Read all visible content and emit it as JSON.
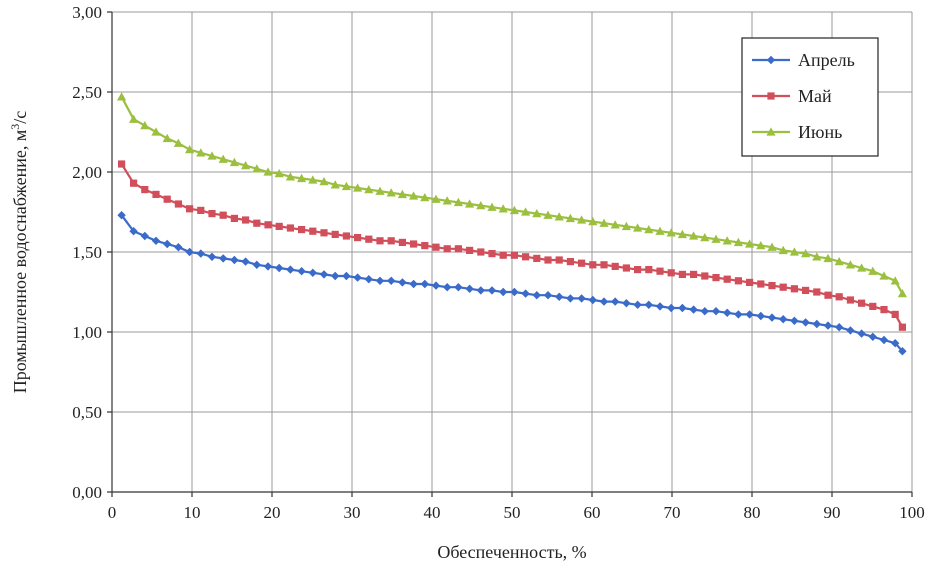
{
  "chart_data": {
    "type": "line",
    "xlabel": "Обеспеченность, %",
    "ylabel_main": "Промышленное водоснабжение, м",
    "ylabel_sup": "3",
    "ylabel_tail": "/с",
    "xlim": [
      0,
      100
    ],
    "ylim": [
      0,
      3
    ],
    "xticks": [
      0,
      10,
      20,
      30,
      40,
      50,
      60,
      70,
      80,
      90,
      100
    ],
    "yticks": [
      "0,00",
      "0,50",
      "1,00",
      "1,50",
      "2,00",
      "2,50",
      "3,00"
    ],
    "ytick_values": [
      0,
      0.5,
      1,
      1.5,
      2,
      2.5,
      3
    ],
    "grid": true,
    "legend_position": "top-right",
    "x": [
      1.2,
      2.7,
      4.1,
      5.5,
      6.9,
      8.3,
      9.7,
      11.1,
      12.5,
      13.9,
      15.3,
      16.7,
      18.1,
      19.5,
      20.9,
      22.3,
      23.7,
      25.1,
      26.5,
      27.9,
      29.3,
      30.7,
      32.1,
      33.5,
      34.9,
      36.3,
      37.7,
      39.1,
      40.5,
      41.9,
      43.3,
      44.7,
      46.1,
      47.5,
      48.9,
      50.3,
      51.7,
      53.1,
      54.5,
      55.9,
      57.3,
      58.7,
      60.1,
      61.5,
      62.9,
      64.3,
      65.7,
      67.1,
      68.5,
      69.9,
      71.3,
      72.7,
      74.1,
      75.5,
      76.9,
      78.3,
      79.7,
      81.1,
      82.5,
      83.9,
      85.3,
      86.7,
      88.1,
      89.5,
      90.9,
      92.3,
      93.7,
      95.1,
      96.5,
      97.9,
      98.8
    ],
    "series": [
      {
        "name": "Апрель",
        "color": "#3a6bc9",
        "marker": "diamond",
        "values": [
          1.73,
          1.63,
          1.6,
          1.57,
          1.55,
          1.53,
          1.5,
          1.49,
          1.47,
          1.46,
          1.45,
          1.44,
          1.42,
          1.41,
          1.4,
          1.39,
          1.38,
          1.37,
          1.36,
          1.35,
          1.35,
          1.34,
          1.33,
          1.32,
          1.32,
          1.31,
          1.3,
          1.3,
          1.29,
          1.28,
          1.28,
          1.27,
          1.26,
          1.26,
          1.25,
          1.25,
          1.24,
          1.23,
          1.23,
          1.22,
          1.21,
          1.21,
          1.2,
          1.19,
          1.19,
          1.18,
          1.17,
          1.17,
          1.16,
          1.15,
          1.15,
          1.14,
          1.13,
          1.13,
          1.12,
          1.11,
          1.11,
          1.1,
          1.09,
          1.08,
          1.07,
          1.06,
          1.05,
          1.04,
          1.03,
          1.01,
          0.99,
          0.97,
          0.95,
          0.93,
          0.88
        ]
      },
      {
        "name": "Май",
        "color": "#d14f5b",
        "marker": "square",
        "values": [
          2.05,
          1.93,
          1.89,
          1.86,
          1.83,
          1.8,
          1.77,
          1.76,
          1.74,
          1.73,
          1.71,
          1.7,
          1.68,
          1.67,
          1.66,
          1.65,
          1.64,
          1.63,
          1.62,
          1.61,
          1.6,
          1.59,
          1.58,
          1.57,
          1.57,
          1.56,
          1.55,
          1.54,
          1.53,
          1.52,
          1.52,
          1.51,
          1.5,
          1.49,
          1.48,
          1.48,
          1.47,
          1.46,
          1.45,
          1.45,
          1.44,
          1.43,
          1.42,
          1.42,
          1.41,
          1.4,
          1.39,
          1.39,
          1.38,
          1.37,
          1.36,
          1.36,
          1.35,
          1.34,
          1.33,
          1.32,
          1.31,
          1.3,
          1.29,
          1.28,
          1.27,
          1.26,
          1.25,
          1.23,
          1.22,
          1.2,
          1.18,
          1.16,
          1.14,
          1.11,
          1.03
        ]
      },
      {
        "name": "Июнь",
        "color": "#9bbf3f",
        "marker": "triangle",
        "values": [
          2.47,
          2.33,
          2.29,
          2.25,
          2.21,
          2.18,
          2.14,
          2.12,
          2.1,
          2.08,
          2.06,
          2.04,
          2.02,
          2.0,
          1.99,
          1.97,
          1.96,
          1.95,
          1.94,
          1.92,
          1.91,
          1.9,
          1.89,
          1.88,
          1.87,
          1.86,
          1.85,
          1.84,
          1.83,
          1.82,
          1.81,
          1.8,
          1.79,
          1.78,
          1.77,
          1.76,
          1.75,
          1.74,
          1.73,
          1.72,
          1.71,
          1.7,
          1.69,
          1.68,
          1.67,
          1.66,
          1.65,
          1.64,
          1.63,
          1.62,
          1.61,
          1.6,
          1.59,
          1.58,
          1.57,
          1.56,
          1.55,
          1.54,
          1.53,
          1.51,
          1.5,
          1.49,
          1.47,
          1.46,
          1.44,
          1.42,
          1.4,
          1.38,
          1.35,
          1.32,
          1.24
        ]
      }
    ]
  }
}
